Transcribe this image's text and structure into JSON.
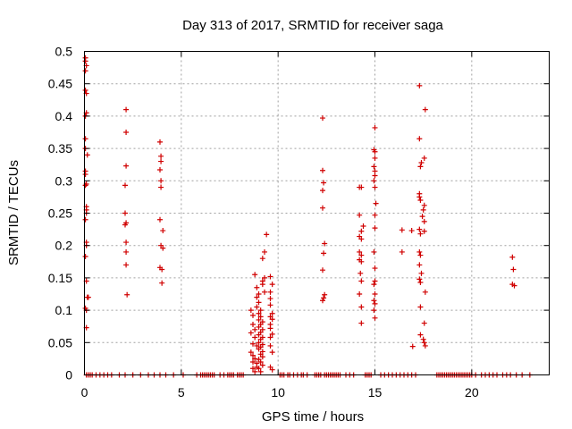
{
  "chart_data": {
    "type": "scatter",
    "title": "Day 313 of 2017, SRMTID for receiver saga",
    "xlabel": "GPS time / hours",
    "ylabel": "SRMTID / TECUs",
    "xlim": [
      0,
      24
    ],
    "ylim": [
      0,
      0.5
    ],
    "xticks": [
      0,
      5,
      10,
      15,
      20
    ],
    "xtick_labels": [
      "0",
      "5",
      "10",
      "15",
      "20"
    ],
    "yticks": [
      0,
      0.05,
      0.1,
      0.15,
      0.2,
      0.25,
      0.3,
      0.35,
      0.4,
      0.45,
      0.5
    ],
    "ytick_labels": [
      "0",
      "0.05",
      "0.1",
      "0.15",
      "0.2",
      "0.25",
      "0.3",
      "0.35",
      "0.4",
      "0.45",
      "0.5"
    ],
    "grid": true,
    "legend": "none",
    "marker": "plus",
    "color": "#d00000",
    "series": [
      {
        "name": "SRMTID",
        "points": [
          [
            0.05,
            0.49
          ],
          [
            0.05,
            0.485
          ],
          [
            0.1,
            0.478
          ],
          [
            0.05,
            0.47
          ],
          [
            0.05,
            0.44
          ],
          [
            0.1,
            0.435
          ],
          [
            0.1,
            0.405
          ],
          [
            0.05,
            0.4
          ],
          [
            0.05,
            0.365
          ],
          [
            0.05,
            0.35
          ],
          [
            0.15,
            0.34
          ],
          [
            0.05,
            0.315
          ],
          [
            0.05,
            0.31
          ],
          [
            0.1,
            0.295
          ],
          [
            0.05,
            0.293
          ],
          [
            0.1,
            0.26
          ],
          [
            0.1,
            0.255
          ],
          [
            0.1,
            0.25
          ],
          [
            0.05,
            0.24
          ],
          [
            0.1,
            0.205
          ],
          [
            0.1,
            0.2
          ],
          [
            0.05,
            0.183
          ],
          [
            0.1,
            0.145
          ],
          [
            0.15,
            0.12
          ],
          [
            0.2,
            0.12
          ],
          [
            0.05,
            0.103
          ],
          [
            0.1,
            0.1
          ],
          [
            0.1,
            0.073
          ],
          [
            2.15,
            0.41
          ],
          [
            2.15,
            0.375
          ],
          [
            2.15,
            0.323
          ],
          [
            2.1,
            0.293
          ],
          [
            2.1,
            0.25
          ],
          [
            2.15,
            0.235
          ],
          [
            2.1,
            0.232
          ],
          [
            2.15,
            0.205
          ],
          [
            2.15,
            0.19
          ],
          [
            2.15,
            0.17
          ],
          [
            2.2,
            0.124
          ],
          [
            3.9,
            0.36
          ],
          [
            3.95,
            0.338
          ],
          [
            3.95,
            0.33
          ],
          [
            3.9,
            0.317
          ],
          [
            3.95,
            0.3
          ],
          [
            3.95,
            0.29
          ],
          [
            3.9,
            0.24
          ],
          [
            4.05,
            0.223
          ],
          [
            3.95,
            0.2
          ],
          [
            4.05,
            0.196
          ],
          [
            3.9,
            0.166
          ],
          [
            4.0,
            0.163
          ],
          [
            4.0,
            0.142
          ],
          [
            8.6,
            0.1
          ],
          [
            8.7,
            0.092
          ],
          [
            8.7,
            0.078
          ],
          [
            8.8,
            0.07
          ],
          [
            8.6,
            0.065
          ],
          [
            8.8,
            0.058
          ],
          [
            8.7,
            0.048
          ],
          [
            8.9,
            0.045
          ],
          [
            8.6,
            0.035
          ],
          [
            8.7,
            0.03
          ],
          [
            8.8,
            0.025
          ],
          [
            8.7,
            0.02
          ],
          [
            8.9,
            0.018
          ],
          [
            8.7,
            0.01
          ],
          [
            8.9,
            0.012
          ],
          [
            8.8,
            0.005
          ],
          [
            8.8,
            0.155
          ],
          [
            8.9,
            0.135
          ],
          [
            9.0,
            0.125
          ],
          [
            8.9,
            0.12
          ],
          [
            9.0,
            0.112
          ],
          [
            8.9,
            0.105
          ],
          [
            9.1,
            0.1
          ],
          [
            9.0,
            0.095
          ],
          [
            9.1,
            0.09
          ],
          [
            9.0,
            0.085
          ],
          [
            9.2,
            0.082
          ],
          [
            9.1,
            0.078
          ],
          [
            9.0,
            0.074
          ],
          [
            9.2,
            0.07
          ],
          [
            9.1,
            0.066
          ],
          [
            9.0,
            0.062
          ],
          [
            9.2,
            0.058
          ],
          [
            9.1,
            0.055
          ],
          [
            9.0,
            0.05
          ],
          [
            9.2,
            0.047
          ],
          [
            9.1,
            0.043
          ],
          [
            9.0,
            0.04
          ],
          [
            9.2,
            0.036
          ],
          [
            9.1,
            0.032
          ],
          [
            9.2,
            0.028
          ],
          [
            9.0,
            0.024
          ],
          [
            9.1,
            0.02
          ],
          [
            9.2,
            0.015
          ],
          [
            9.0,
            0.01
          ],
          [
            9.1,
            0.005
          ],
          [
            9.2,
            0.145
          ],
          [
            9.2,
            0.14
          ],
          [
            9.3,
            0.15
          ],
          [
            9.3,
            0.128
          ],
          [
            9.2,
            0.18
          ],
          [
            9.3,
            0.19
          ],
          [
            9.4,
            0.217
          ],
          [
            9.6,
            0.152
          ],
          [
            9.7,
            0.14
          ],
          [
            9.6,
            0.128
          ],
          [
            9.6,
            0.118
          ],
          [
            9.6,
            0.108
          ],
          [
            9.7,
            0.095
          ],
          [
            9.6,
            0.09
          ],
          [
            9.7,
            0.086
          ],
          [
            9.6,
            0.078
          ],
          [
            9.6,
            0.072
          ],
          [
            9.7,
            0.063
          ],
          [
            9.6,
            0.058
          ],
          [
            9.6,
            0.045
          ],
          [
            9.7,
            0.035
          ],
          [
            9.6,
            0.012
          ],
          [
            9.7,
            0.008
          ],
          [
            12.3,
            0.397
          ],
          [
            12.3,
            0.316
          ],
          [
            12.35,
            0.297
          ],
          [
            12.3,
            0.285
          ],
          [
            12.3,
            0.258
          ],
          [
            12.4,
            0.203
          ],
          [
            12.35,
            0.188
          ],
          [
            12.3,
            0.162
          ],
          [
            12.4,
            0.124
          ],
          [
            12.35,
            0.119
          ],
          [
            12.3,
            0.115
          ],
          [
            14.2,
            0.29
          ],
          [
            14.3,
            0.29
          ],
          [
            14.2,
            0.247
          ],
          [
            14.4,
            0.23
          ],
          [
            14.3,
            0.222
          ],
          [
            14.2,
            0.214
          ],
          [
            14.3,
            0.21
          ],
          [
            14.2,
            0.19
          ],
          [
            14.3,
            0.185
          ],
          [
            14.2,
            0.178
          ],
          [
            14.3,
            0.175
          ],
          [
            14.25,
            0.157
          ],
          [
            14.3,
            0.145
          ],
          [
            14.2,
            0.125
          ],
          [
            14.3,
            0.105
          ],
          [
            14.3,
            0.08
          ],
          [
            15.0,
            0.382
          ],
          [
            14.95,
            0.348
          ],
          [
            15.0,
            0.345
          ],
          [
            15.0,
            0.335
          ],
          [
            14.95,
            0.322
          ],
          [
            15.0,
            0.315
          ],
          [
            15.0,
            0.308
          ],
          [
            14.95,
            0.3
          ],
          [
            15.0,
            0.29
          ],
          [
            15.05,
            0.265
          ],
          [
            15.0,
            0.247
          ],
          [
            15.0,
            0.227
          ],
          [
            14.95,
            0.19
          ],
          [
            15.0,
            0.165
          ],
          [
            15.0,
            0.145
          ],
          [
            14.95,
            0.14
          ],
          [
            15.0,
            0.125
          ],
          [
            14.95,
            0.115
          ],
          [
            15.0,
            0.11
          ],
          [
            14.95,
            0.1
          ],
          [
            15.0,
            0.088
          ],
          [
            16.4,
            0.224
          ],
          [
            16.4,
            0.19
          ],
          [
            16.9,
            0.223
          ],
          [
            16.95,
            0.044
          ],
          [
            17.3,
            0.447
          ],
          [
            17.6,
            0.41
          ],
          [
            17.3,
            0.365
          ],
          [
            17.55,
            0.335
          ],
          [
            17.4,
            0.328
          ],
          [
            17.35,
            0.322
          ],
          [
            17.3,
            0.28
          ],
          [
            17.3,
            0.275
          ],
          [
            17.35,
            0.27
          ],
          [
            17.55,
            0.262
          ],
          [
            17.5,
            0.255
          ],
          [
            17.45,
            0.245
          ],
          [
            17.55,
            0.237
          ],
          [
            17.3,
            0.225
          ],
          [
            17.35,
            0.218
          ],
          [
            17.55,
            0.222
          ],
          [
            17.3,
            0.19
          ],
          [
            17.35,
            0.185
          ],
          [
            17.3,
            0.17
          ],
          [
            17.4,
            0.157
          ],
          [
            17.3,
            0.148
          ],
          [
            17.35,
            0.143
          ],
          [
            17.6,
            0.128
          ],
          [
            17.35,
            0.105
          ],
          [
            17.55,
            0.08
          ],
          [
            17.35,
            0.062
          ],
          [
            17.5,
            0.055
          ],
          [
            17.55,
            0.05
          ],
          [
            17.6,
            0.045
          ],
          [
            22.1,
            0.182
          ],
          [
            22.15,
            0.163
          ],
          [
            22.1,
            0.14
          ],
          [
            22.2,
            0.138
          ]
        ]
      }
    ],
    "zero_markers_x": [
      0.1,
      0.2,
      0.3,
      0.4,
      0.6,
      0.8,
      1.0,
      1.2,
      1.4,
      1.8,
      2.1,
      2.5,
      2.9,
      3.3,
      3.6,
      3.9,
      4.2,
      4.6,
      5.1,
      5.8,
      6.0,
      6.1,
      6.2,
      6.3,
      6.4,
      6.5,
      6.6,
      6.7,
      7.0,
      7.2,
      7.4,
      7.5,
      7.6,
      7.7,
      7.9,
      8.0,
      8.1,
      8.2,
      10.1,
      10.2,
      10.3,
      10.5,
      10.6,
      10.8,
      11.0,
      11.2,
      11.3,
      11.5,
      11.9,
      12.0,
      12.1,
      12.2,
      12.4,
      12.5,
      12.6,
      12.7,
      12.8,
      12.9,
      13.0,
      13.1,
      13.2,
      13.5,
      13.7,
      13.9,
      14.5,
      14.6,
      14.7,
      14.8,
      15.3,
      15.5,
      15.7,
      15.9,
      16.1,
      16.3,
      16.5,
      16.7,
      16.9,
      17.1,
      18.2,
      18.3,
      18.4,
      18.5,
      18.6,
      18.7,
      18.8,
      18.9,
      19.0,
      19.1,
      19.2,
      19.3,
      19.4,
      19.5,
      19.6,
      19.7,
      19.8,
      19.9,
      20.0,
      20.2,
      20.5,
      20.7,
      20.9,
      21.1,
      21.3,
      21.6,
      21.8,
      22.0,
      22.3,
      22.6,
      23.0
    ]
  }
}
